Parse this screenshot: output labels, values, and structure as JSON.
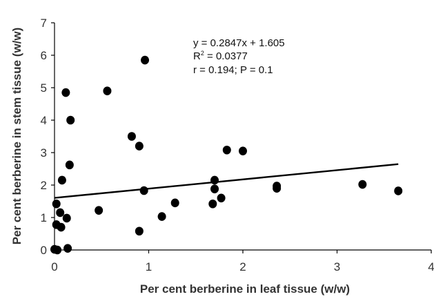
{
  "chart_data": {
    "type": "scatter",
    "xlabel": "Per cent berberine in leaf tissue (w/w)",
    "ylabel": "Per cent berberine in stem tissue (w/w)",
    "xlim": [
      0,
      4
    ],
    "ylim": [
      0,
      7
    ],
    "x_ticks": [
      "0",
      "1",
      "2",
      "3",
      "4"
    ],
    "y_ticks": [
      "0",
      "1",
      "2",
      "3",
      "4",
      "5",
      "6",
      "7"
    ],
    "grid": false,
    "legend": "none",
    "point_color": "#000000",
    "annotation": {
      "line1": "y = 0.2847x + 1.605",
      "line2_prefix": "R",
      "line2_sup": "2",
      "line2_suffix": " = 0.0377",
      "line3": "r = 0.194; P = 0.1"
    },
    "trendline": {
      "slope": 0.2847,
      "intercept": 1.605,
      "x_range": [
        0,
        3.65
      ]
    },
    "points": [
      {
        "x": 0.12,
        "y": 4.85
      },
      {
        "x": 0.17,
        "y": 4.0
      },
      {
        "x": 0.56,
        "y": 4.9
      },
      {
        "x": 0.96,
        "y": 5.85
      },
      {
        "x": 0.82,
        "y": 3.5
      },
      {
        "x": 0.9,
        "y": 3.2
      },
      {
        "x": 0.16,
        "y": 2.62
      },
      {
        "x": 0.08,
        "y": 2.15
      },
      {
        "x": 0.02,
        "y": 1.42
      },
      {
        "x": 0.06,
        "y": 1.15
      },
      {
        "x": 0.13,
        "y": 0.98
      },
      {
        "x": 0.02,
        "y": 0.78
      },
      {
        "x": 0.07,
        "y": 0.7
      },
      {
        "x": 0.0,
        "y": 0.02
      },
      {
        "x": 0.03,
        "y": 0.0
      },
      {
        "x": 0.14,
        "y": 0.05
      },
      {
        "x": 0.47,
        "y": 1.22
      },
      {
        "x": 0.9,
        "y": 0.58
      },
      {
        "x": 0.95,
        "y": 1.83
      },
      {
        "x": 1.14,
        "y": 1.03
      },
      {
        "x": 1.28,
        "y": 1.45
      },
      {
        "x": 1.68,
        "y": 1.42
      },
      {
        "x": 1.7,
        "y": 2.15
      },
      {
        "x": 1.7,
        "y": 1.88
      },
      {
        "x": 1.77,
        "y": 1.6
      },
      {
        "x": 1.83,
        "y": 3.08
      },
      {
        "x": 2.0,
        "y": 3.05
      },
      {
        "x": 2.36,
        "y": 1.97
      },
      {
        "x": 2.36,
        "y": 1.9
      },
      {
        "x": 3.27,
        "y": 2.02
      },
      {
        "x": 3.65,
        "y": 1.82
      }
    ]
  }
}
